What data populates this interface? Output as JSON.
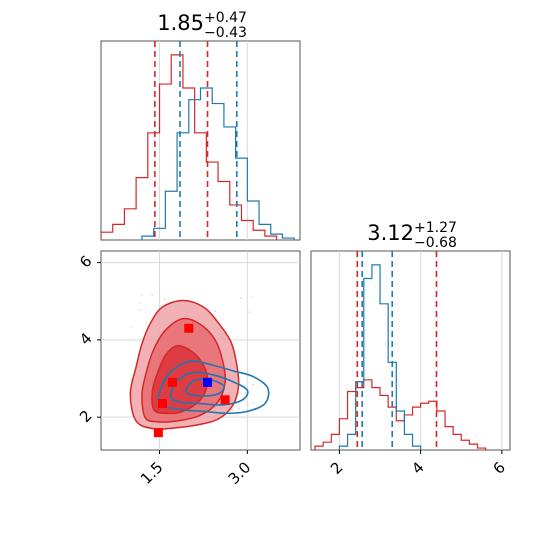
{
  "chart_data": [
    {
      "panel": "x1-histogram",
      "type": "histogram",
      "title": {
        "value": "1.85",
        "upper": "+0.47",
        "lower": "−0.43"
      },
      "xlim": [
        0.5,
        3.9
      ],
      "series": [
        {
          "name": "",
          "color": "#d62728",
          "bins": [
            [
              0.5,
              0.7,
              0.04
            ],
            [
              0.7,
              0.9,
              0.08
            ],
            [
              0.9,
              1.1,
              0.16
            ],
            [
              1.1,
              1.3,
              0.32
            ],
            [
              1.3,
              1.5,
              0.55
            ],
            [
              1.5,
              1.7,
              0.8
            ],
            [
              1.7,
              1.9,
              0.95
            ],
            [
              1.9,
              2.1,
              0.78
            ],
            [
              2.1,
              2.3,
              0.55
            ],
            [
              2.3,
              2.5,
              0.4
            ],
            [
              2.5,
              2.7,
              0.3
            ],
            [
              2.7,
              2.9,
              0.18
            ],
            [
              2.9,
              3.1,
              0.1
            ],
            [
              3.1,
              3.3,
              0.05
            ],
            [
              3.3,
              3.5,
              0.02
            ]
          ],
          "quantiles": [
            1.42,
            2.32
          ]
        },
        {
          "name": "",
          "color": "#1f77b4",
          "bins": [
            [
              1.2,
              1.4,
              0.02
            ],
            [
              1.4,
              1.6,
              0.06
            ],
            [
              1.6,
              1.8,
              0.25
            ],
            [
              1.8,
              2.0,
              0.55
            ],
            [
              2.0,
              2.2,
              0.72
            ],
            [
              2.2,
              2.4,
              0.78
            ],
            [
              2.4,
              2.6,
              0.7
            ],
            [
              2.6,
              2.8,
              0.58
            ],
            [
              2.8,
              3.0,
              0.42
            ],
            [
              3.0,
              3.2,
              0.2
            ],
            [
              3.2,
              3.4,
              0.08
            ],
            [
              3.4,
              3.6,
              0.03
            ],
            [
              3.6,
              3.8,
              0.01
            ]
          ],
          "quantiles": [
            1.85,
            2.82
          ]
        }
      ]
    },
    {
      "panel": "x2-histogram",
      "type": "histogram",
      "title": {
        "value": "3.12",
        "upper": "+1.27",
        "lower": "−0.68"
      },
      "xlim": [
        1.3,
        6.2
      ],
      "xticks": [
        "2",
        "4",
        "6"
      ],
      "series": [
        {
          "name": "",
          "color": "#d62728",
          "bins": [
            [
              1.4,
              1.6,
              0.02
            ],
            [
              1.6,
              1.8,
              0.04
            ],
            [
              1.8,
              2.0,
              0.08
            ],
            [
              2.0,
              2.2,
              0.16
            ],
            [
              2.2,
              2.4,
              0.3
            ],
            [
              2.4,
              2.6,
              0.32
            ],
            [
              2.6,
              2.8,
              0.36
            ],
            [
              2.8,
              3.0,
              0.32
            ],
            [
              3.0,
              3.2,
              0.28
            ],
            [
              3.2,
              3.4,
              0.22
            ],
            [
              3.4,
              3.6,
              0.15
            ],
            [
              3.6,
              3.8,
              0.18
            ],
            [
              3.8,
              4.0,
              0.22
            ],
            [
              4.0,
              4.2,
              0.24
            ],
            [
              4.2,
              4.4,
              0.25
            ],
            [
              4.4,
              4.6,
              0.2
            ],
            [
              4.6,
              4.8,
              0.12
            ],
            [
              4.8,
              5.0,
              0.08
            ],
            [
              5.0,
              5.2,
              0.05
            ],
            [
              5.2,
              5.4,
              0.03
            ],
            [
              5.4,
              5.6,
              0.01
            ]
          ],
          "quantiles": [
            2.44,
            4.39
          ]
        },
        {
          "name": "",
          "color": "#1f77b4",
          "bins": [
            [
              2.0,
              2.2,
              0.02
            ],
            [
              2.2,
              2.4,
              0.08
            ],
            [
              2.4,
              2.6,
              0.35
            ],
            [
              2.6,
              2.8,
              0.88
            ],
            [
              2.8,
              3.0,
              0.95
            ],
            [
              3.0,
              3.2,
              0.75
            ],
            [
              3.2,
              3.4,
              0.45
            ],
            [
              3.4,
              3.6,
              0.2
            ],
            [
              3.6,
              3.8,
              0.08
            ],
            [
              3.8,
              4.0,
              0.02
            ]
          ],
          "quantiles": [
            2.56,
            3.3
          ]
        }
      ]
    },
    {
      "panel": "x1-x2-joint",
      "type": "contour",
      "xlim": [
        0.5,
        3.9
      ],
      "ylim": [
        1.15,
        6.3
      ],
      "xticks": [
        "1.5",
        "3.0"
      ],
      "yticks": [
        "2",
        "4",
        "6"
      ],
      "series": [
        {
          "name": "",
          "color": "#d62728",
          "style": "filled",
          "levels": [
            [
              [
                1.1,
                1.9
              ],
              [
                1.0,
                2.6
              ],
              [
                1.1,
                3.3
              ],
              [
                1.2,
                3.9
              ],
              [
                1.35,
                4.45
              ],
              [
                1.55,
                4.85
              ],
              [
                1.9,
                5.02
              ],
              [
                2.25,
                4.85
              ],
              [
                2.5,
                4.45
              ],
              [
                2.72,
                3.95
              ],
              [
                2.82,
                3.35
              ],
              [
                2.85,
                2.8
              ],
              [
                2.75,
                2.3
              ],
              [
                2.5,
                1.95
              ],
              [
                2.15,
                1.8
              ],
              [
                1.75,
                1.72
              ],
              [
                1.4,
                1.7
              ]
            ],
            [
              [
                1.25,
                2.0
              ],
              [
                1.2,
                2.6
              ],
              [
                1.28,
                3.2
              ],
              [
                1.4,
                3.75
              ],
              [
                1.6,
                4.25
              ],
              [
                1.9,
                4.55
              ],
              [
                2.2,
                4.4
              ],
              [
                2.45,
                4.0
              ],
              [
                2.58,
                3.45
              ],
              [
                2.62,
                2.9
              ],
              [
                2.5,
                2.4
              ],
              [
                2.2,
                2.05
              ],
              [
                1.8,
                1.9
              ],
              [
                1.45,
                1.88
              ]
            ],
            [
              [
                1.4,
                2.2
              ],
              [
                1.38,
                2.7
              ],
              [
                1.48,
                3.2
              ],
              [
                1.6,
                3.6
              ],
              [
                1.8,
                3.85
              ],
              [
                2.05,
                3.7
              ],
              [
                2.25,
                3.35
              ],
              [
                2.32,
                2.9
              ],
              [
                2.2,
                2.45
              ],
              [
                1.9,
                2.15
              ],
              [
                1.6,
                2.1
              ]
            ]
          ],
          "markers": [
            [
              1.48,
              1.6
            ],
            [
              1.55,
              2.35
            ],
            [
              1.72,
              2.9
            ],
            [
              2.0,
              4.3
            ],
            [
              2.62,
              2.45
            ]
          ]
        },
        {
          "name": "",
          "color": "#1f77b4",
          "style": "lines",
          "levels": [
            [
              [
                1.5,
                2.35
              ],
              [
                1.55,
                2.85
              ],
              [
                1.75,
                3.25
              ],
              [
                2.05,
                3.45
              ],
              [
                2.4,
                3.35
              ],
              [
                2.75,
                3.2
              ],
              [
                3.1,
                3.05
              ],
              [
                3.35,
                2.75
              ],
              [
                3.3,
                2.35
              ],
              [
                3.0,
                2.15
              ],
              [
                2.65,
                2.1
              ],
              [
                2.25,
                2.15
              ],
              [
                1.85,
                2.2
              ]
            ],
            [
              [
                1.7,
                2.5
              ],
              [
                1.78,
                2.9
              ],
              [
                2.05,
                3.15
              ],
              [
                2.4,
                3.1
              ],
              [
                2.75,
                2.92
              ],
              [
                3.0,
                2.7
              ],
              [
                2.92,
                2.45
              ],
              [
                2.6,
                2.32
              ],
              [
                2.2,
                2.35
              ],
              [
                1.9,
                2.38
              ]
            ],
            [
              [
                1.95,
                2.65
              ],
              [
                2.1,
                2.95
              ],
              [
                2.4,
                2.95
              ],
              [
                2.6,
                2.8
              ],
              [
                2.5,
                2.6
              ],
              [
                2.2,
                2.55
              ]
            ]
          ],
          "markers": [
            [
              2.32,
              2.9
            ]
          ]
        }
      ]
    }
  ]
}
